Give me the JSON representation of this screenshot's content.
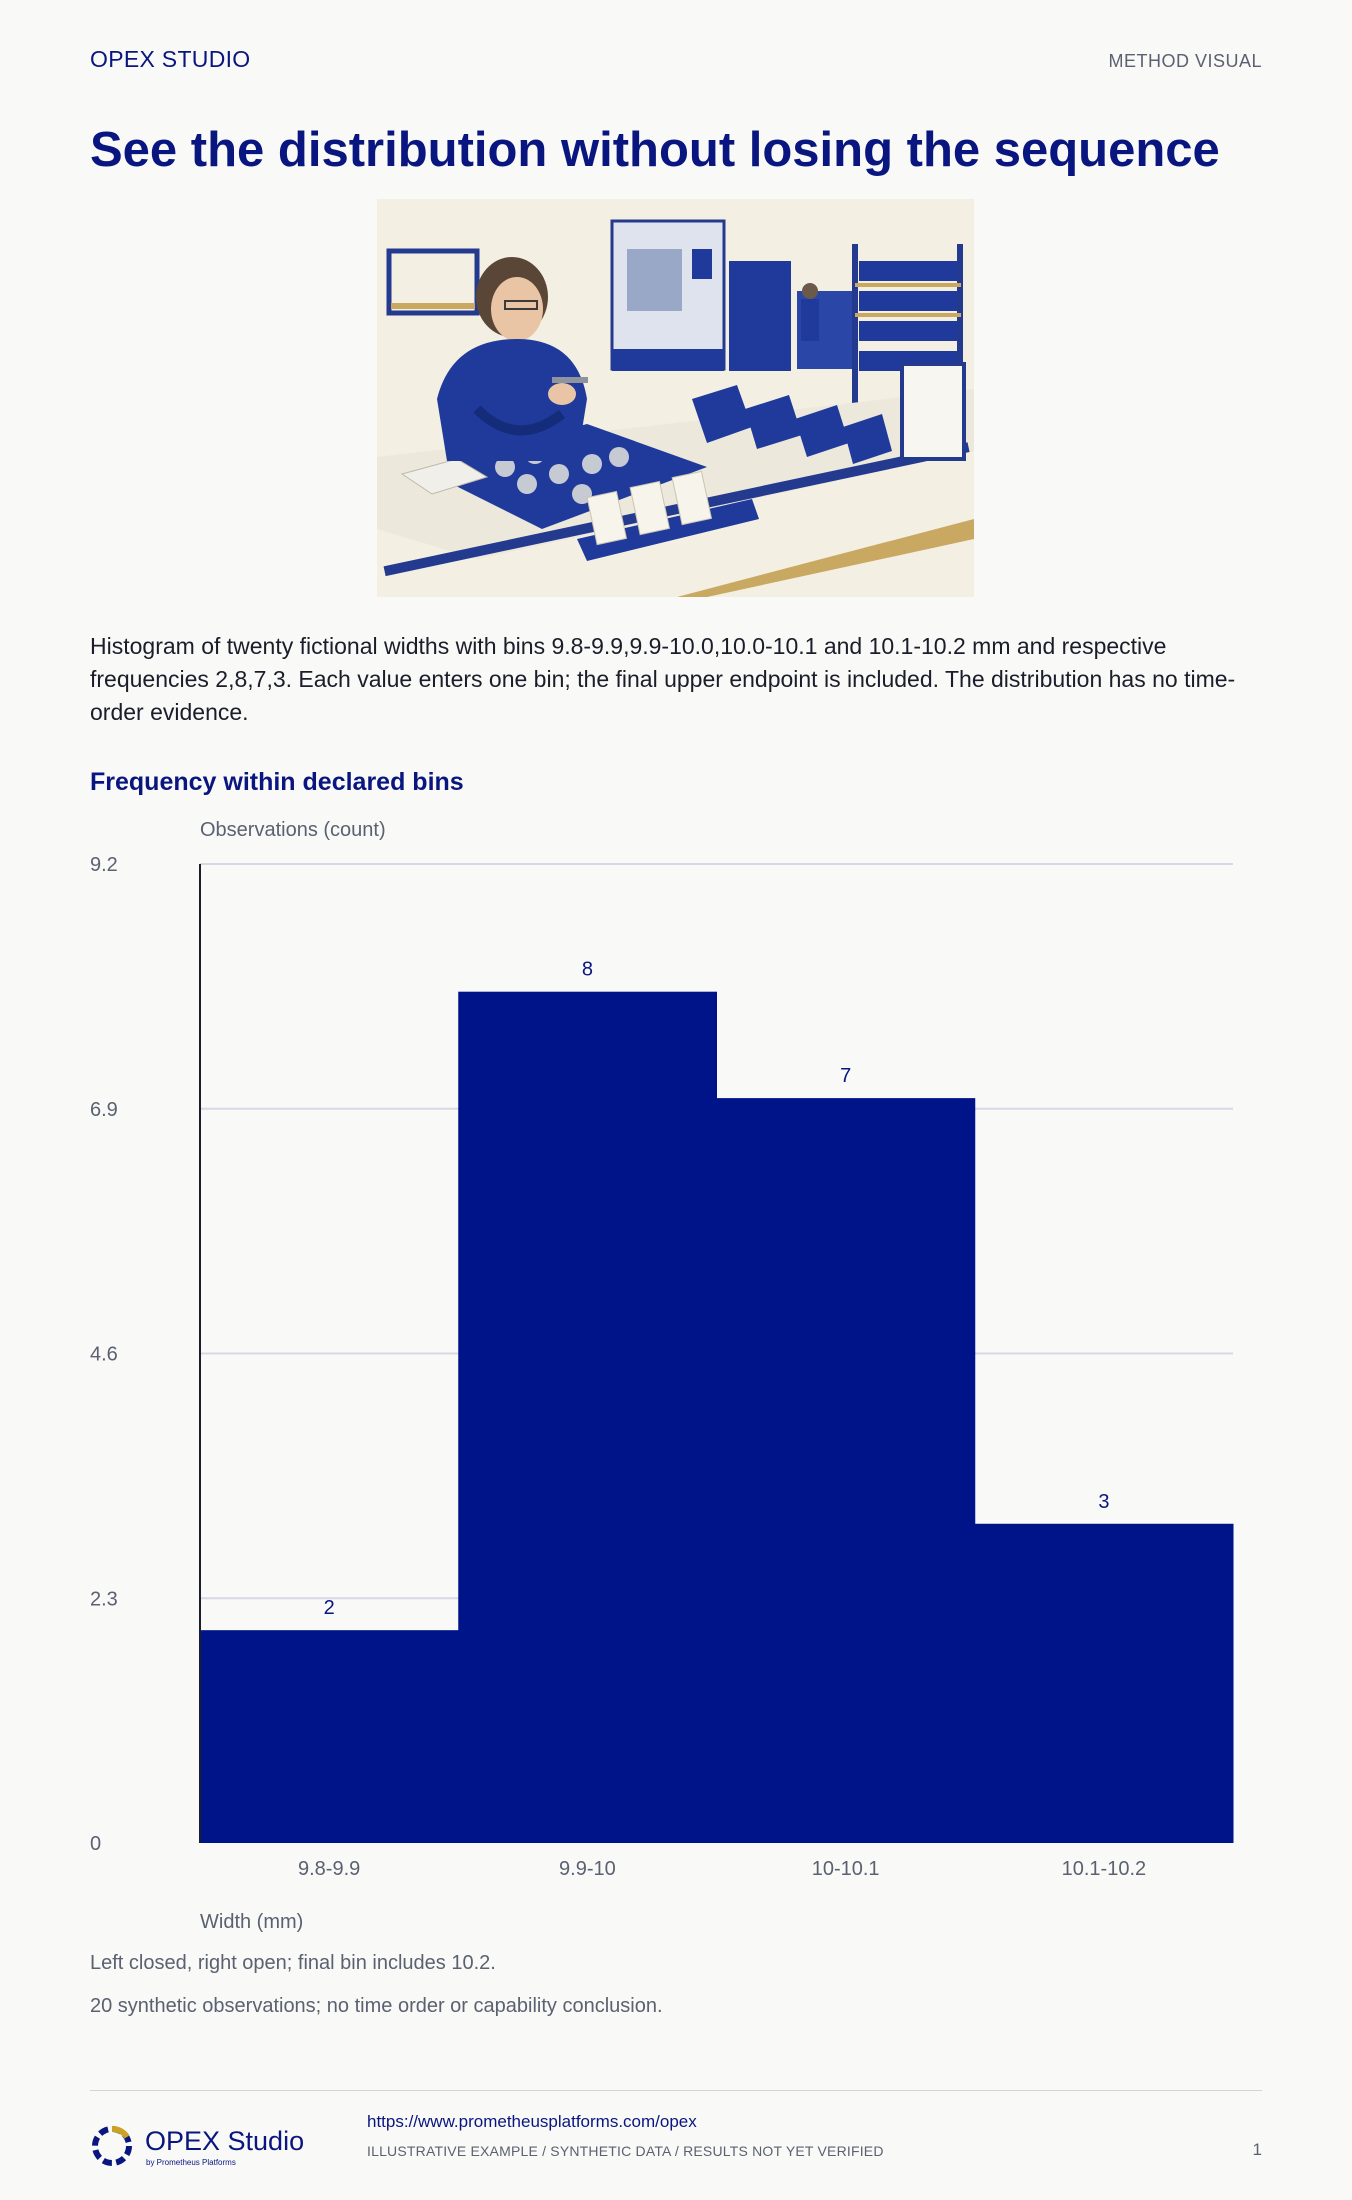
{
  "header": {
    "brand": "OPEX STUDIO",
    "kicker": "METHOD VISUAL",
    "title": "See the distribution without losing the sequence"
  },
  "illustration": {
    "icon": "workshop-inspection-illustration"
  },
  "description": "Histogram of twenty fictional widths with bins 9.8-9.9,9.9-10.0,10.0-10.1 and 10.1-10.2 mm and respective frequencies 2,8,7,3. Each value enters one bin; the final upper endpoint is included. The distribution has no time-order evidence.",
  "chart_data": {
    "type": "bar",
    "subtype": "histogram",
    "title": "Frequency within declared bins",
    "ylabel": "Observations (count)",
    "xlabel": "Width (mm)",
    "categories": [
      "9.8-9.9",
      "9.9-10",
      "10-10.1",
      "10.1-10.2"
    ],
    "values": [
      2,
      8,
      7,
      3
    ],
    "value_labels": [
      "2",
      "8",
      "7",
      "3"
    ],
    "ylim": [
      0,
      9.2
    ],
    "yticks": [
      0,
      2.3,
      4.6,
      6.9,
      9.2
    ],
    "ytick_labels": [
      "0",
      "2.3",
      "4.6",
      "6.9",
      "9.2"
    ],
    "grid": true,
    "legend": "none",
    "bar_color": "#001489"
  },
  "notes": {
    "bins": "Left closed, right open; final bin includes 10.2.",
    "data": "20 synthetic observations; no time order or capability conclusion."
  },
  "footer": {
    "logo_name": "OPEX Studio",
    "logo_sub": "by Prometheus Platforms",
    "url": "https://www.prometheusplatforms.com/opex",
    "disclaimer": "ILLUSTRATIVE EXAMPLE / SYNTHETIC DATA / RESULTS NOT YET VERIFIED",
    "page": "1"
  },
  "colors": {
    "brand": "#0a1680",
    "bar": "#001489",
    "grid": "#d6d8e6",
    "muted": "#5b6170"
  }
}
